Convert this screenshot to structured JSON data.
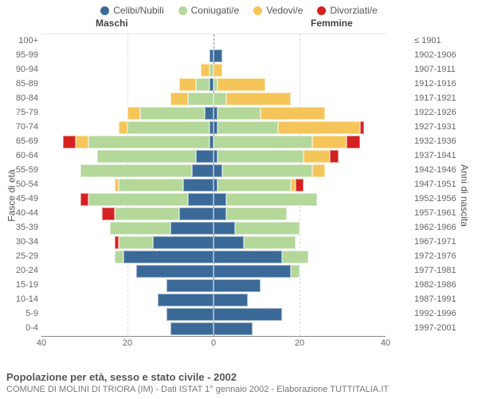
{
  "legend": [
    {
      "label": "Celibi/Nubili",
      "color": "#3b6a99"
    },
    {
      "label": "Coniugati/e",
      "color": "#b4d79a"
    },
    {
      "label": "Vedovi/e",
      "color": "#f6c55a"
    },
    {
      "label": "Divorziati/e",
      "color": "#d42121"
    }
  ],
  "gender": {
    "m": "Maschi",
    "f": "Femmine"
  },
  "axis": {
    "left_title": "Fasce di età",
    "right_title": "Anni di nascita",
    "x_ticks": [
      40,
      20,
      0,
      20,
      40
    ],
    "x_max": 40
  },
  "rows": [
    {
      "age": "100+",
      "birth": "≤ 1901",
      "M": [
        0,
        0,
        0,
        0
      ],
      "F": [
        0,
        0,
        0,
        0
      ]
    },
    {
      "age": "95-99",
      "birth": "1902-1906",
      "M": [
        1,
        0,
        0,
        0
      ],
      "F": [
        2,
        0,
        0,
        0
      ]
    },
    {
      "age": "90-94",
      "birth": "1907-1911",
      "M": [
        0,
        1,
        2,
        0
      ],
      "F": [
        0,
        0,
        2,
        0
      ]
    },
    {
      "age": "85-89",
      "birth": "1912-1916",
      "M": [
        1,
        3,
        4,
        0
      ],
      "F": [
        0,
        1,
        11,
        0
      ]
    },
    {
      "age": "80-84",
      "birth": "1917-1921",
      "M": [
        0,
        6,
        4,
        0
      ],
      "F": [
        0,
        3,
        15,
        0
      ]
    },
    {
      "age": "75-79",
      "birth": "1922-1926",
      "M": [
        2,
        15,
        3,
        0
      ],
      "F": [
        1,
        10,
        15,
        0
      ]
    },
    {
      "age": "70-74",
      "birth": "1927-1931",
      "M": [
        1,
        19,
        2,
        0
      ],
      "F": [
        1,
        14,
        19,
        1
      ]
    },
    {
      "age": "65-69",
      "birth": "1932-1936",
      "M": [
        1,
        28,
        3,
        3
      ],
      "F": [
        0,
        23,
        8,
        3
      ]
    },
    {
      "age": "60-64",
      "birth": "1937-1941",
      "M": [
        4,
        23,
        0,
        0
      ],
      "F": [
        1,
        20,
        6,
        2
      ]
    },
    {
      "age": "55-59",
      "birth": "1942-1946",
      "M": [
        5,
        26,
        0,
        0
      ],
      "F": [
        2,
        21,
        3,
        0
      ]
    },
    {
      "age": "50-54",
      "birth": "1947-1951",
      "M": [
        7,
        15,
        1,
        0
      ],
      "F": [
        1,
        17,
        1,
        2
      ]
    },
    {
      "age": "45-49",
      "birth": "1952-1956",
      "M": [
        6,
        23,
        0,
        2
      ],
      "F": [
        3,
        21,
        0,
        0
      ]
    },
    {
      "age": "40-44",
      "birth": "1957-1961",
      "M": [
        8,
        15,
        0,
        3
      ],
      "F": [
        3,
        14,
        0,
        0
      ]
    },
    {
      "age": "35-39",
      "birth": "1962-1966",
      "M": [
        10,
        14,
        0,
        0
      ],
      "F": [
        5,
        15,
        0,
        0
      ]
    },
    {
      "age": "30-34",
      "birth": "1967-1971",
      "M": [
        14,
        8,
        0,
        1
      ],
      "F": [
        7,
        12,
        0,
        0
      ]
    },
    {
      "age": "25-29",
      "birth": "1972-1976",
      "M": [
        21,
        2,
        0,
        0
      ],
      "F": [
        16,
        6,
        0,
        0
      ]
    },
    {
      "age": "20-24",
      "birth": "1977-1981",
      "M": [
        18,
        0,
        0,
        0
      ],
      "F": [
        18,
        2,
        0,
        0
      ]
    },
    {
      "age": "15-19",
      "birth": "1982-1986",
      "M": [
        11,
        0,
        0,
        0
      ],
      "F": [
        11,
        0,
        0,
        0
      ]
    },
    {
      "age": "10-14",
      "birth": "1987-1991",
      "M": [
        13,
        0,
        0,
        0
      ],
      "F": [
        8,
        0,
        0,
        0
      ]
    },
    {
      "age": "5-9",
      "birth": "1992-1996",
      "M": [
        11,
        0,
        0,
        0
      ],
      "F": [
        16,
        0,
        0,
        0
      ]
    },
    {
      "age": "0-4",
      "birth": "1997-2001",
      "M": [
        10,
        0,
        0,
        0
      ],
      "F": [
        9,
        0,
        0,
        0
      ]
    }
  ],
  "footer": {
    "title": "Popolazione per età, sesso e stato civile - 2002",
    "subtitle": "COMUNE DI MOLINI DI TRIORA (IM) - Dati ISTAT 1° gennaio 2002 - Elaborazione TUTTITALIA.IT"
  },
  "chart_type": "population-pyramid",
  "background": "#ffffff"
}
